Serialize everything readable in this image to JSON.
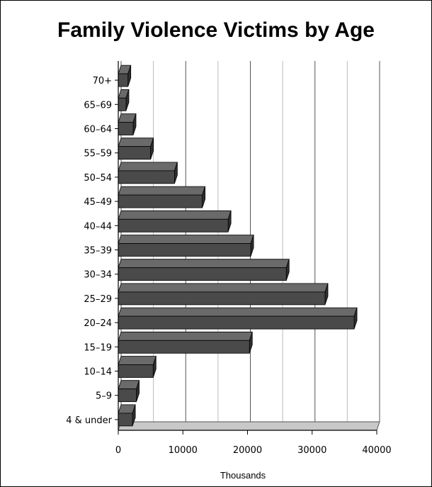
{
  "chart_data": {
    "type": "bar",
    "orientation": "horizontal",
    "title": "Family Violence Victims by Age",
    "xlabel": "Thousands",
    "ylabel": "",
    "categories": [
      "70+",
      "65–69",
      "60–64",
      "55–59",
      "50–54",
      "45–49",
      "40–44",
      "35–39",
      "30–34",
      "25–29",
      "20–24",
      "15–19",
      "10–14",
      "5–9",
      "4 & under"
    ],
    "values": [
      1500,
      1200,
      2300,
      5000,
      8700,
      13000,
      17000,
      20500,
      26000,
      32000,
      36500,
      20300,
      5400,
      2800,
      2200
    ],
    "xlim": [
      0,
      40000
    ],
    "xticks": [
      0,
      10000,
      20000,
      30000,
      40000
    ],
    "grid": true,
    "bar_color": "#4a4a4a",
    "floor_color": "#c8c8c8"
  }
}
